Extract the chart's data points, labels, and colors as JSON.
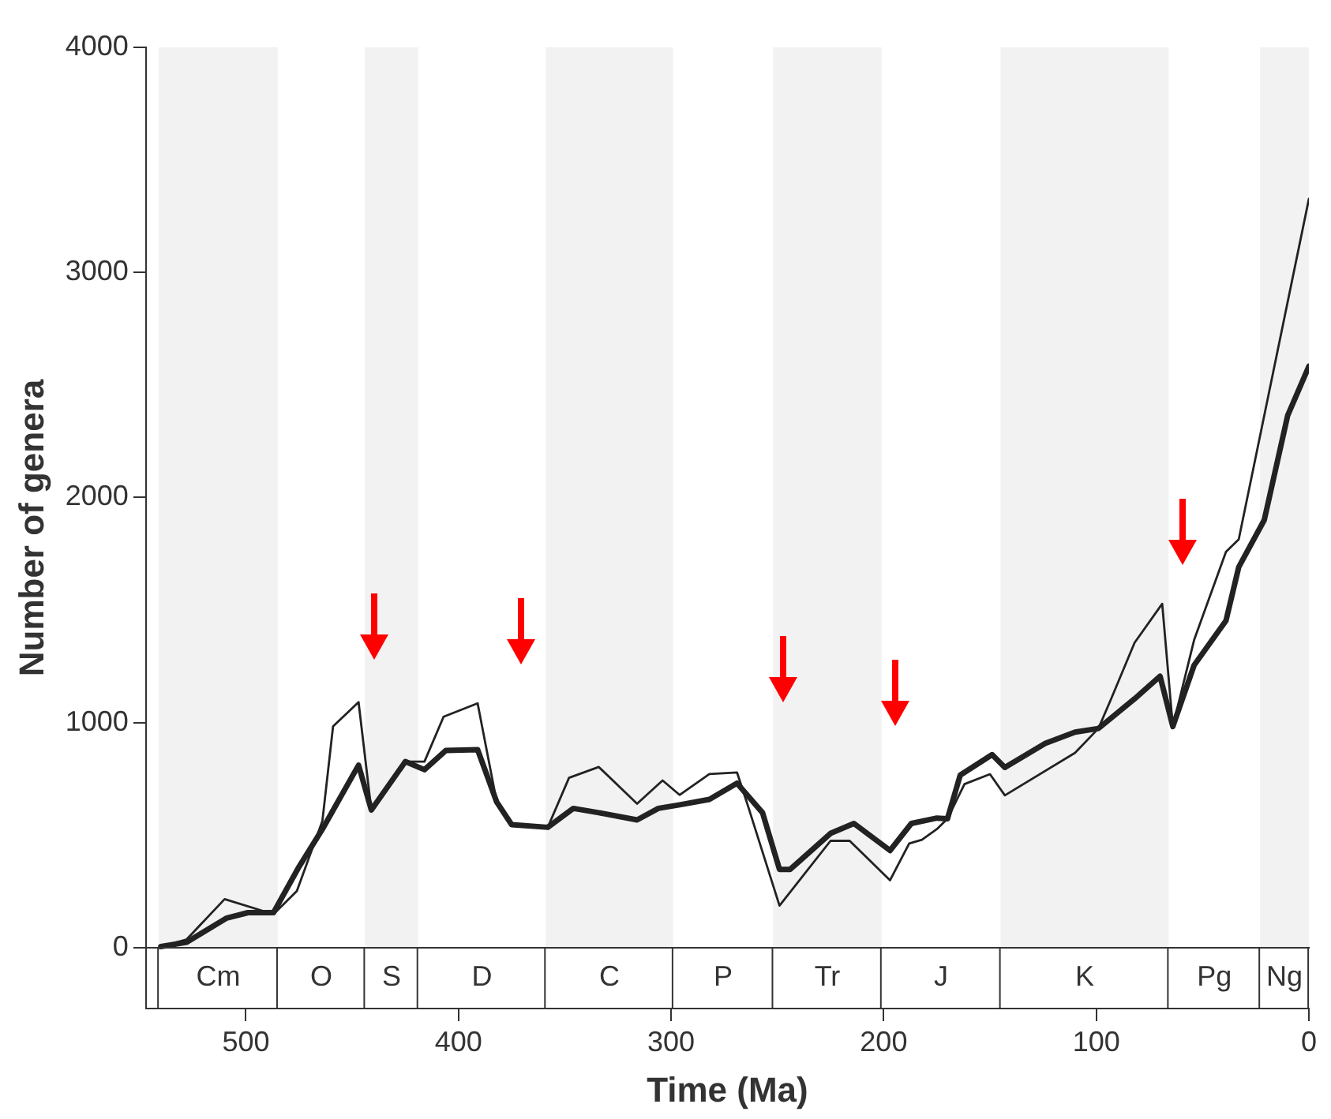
{
  "chart_data": {
    "type": "line",
    "xlabel": "Time (Ma)",
    "ylabel": "Number of genera",
    "xlim": [
      547,
      0
    ],
    "xticks": [
      500,
      400,
      300,
      200,
      100,
      0
    ],
    "ylim": [
      -270,
      4000
    ],
    "yticks": [
      0,
      1000,
      2000,
      3000,
      4000
    ],
    "marker": "none",
    "line_style": "solid",
    "bands": [
      {
        "axis": "x",
        "from": 541,
        "to": 485,
        "label": "Cm",
        "color": "#f2f2f2"
      },
      {
        "axis": "x",
        "from": 444,
        "to": 419,
        "label": "S",
        "color": "#f2f2f2"
      },
      {
        "axis": "x",
        "from": 359,
        "to": 299,
        "label": "C",
        "color": "#f2f2f2"
      },
      {
        "axis": "x",
        "from": 252,
        "to": 201,
        "label": "Tr",
        "color": "#f2f2f2"
      },
      {
        "axis": "x",
        "from": 145,
        "to": 66,
        "label": "K",
        "color": "#f2f2f2"
      },
      {
        "axis": "x",
        "from": 23,
        "to": 0,
        "label": "Ng",
        "color": "#f2f2f2"
      }
    ],
    "annotations": [
      "O",
      "D",
      "P",
      "J",
      "Pg"
    ],
    "series": [
      {
        "color": "#222222",
        "x": [
          540,
          528,
          509,
          499,
          487,
          475,
          464,
          447,
          441,
          425,
          416,
          406,
          391,
          382,
          375,
          358,
          346,
          334,
          316,
          306,
          296,
          282,
          269,
          257,
          249,
          244,
          225,
          214,
          197,
          187,
          175,
          170,
          164,
          149,
          143,
          124,
          110,
          99,
          82,
          70,
          64,
          54,
          39,
          33,
          21,
          10,
          0
        ],
        "values": [
          5,
          24,
          132,
          156,
          156,
          360,
          527,
          811,
          612,
          827,
          791,
          876,
          880,
          647,
          547,
          535,
          619,
          600,
          568,
          619,
          635,
          659,
          731,
          600,
          348,
          348,
          508,
          552,
          432,
          552,
          576,
          573,
          767,
          858,
          801,
          908,
          958,
          974,
          1106,
          1206,
          983,
          1255,
          1453,
          1691,
          1900,
          2364,
          2583
        ]
      },
      {
        "color": "#222222",
        "x": [
          540,
          528,
          510,
          487,
          476,
          464,
          459,
          447,
          441,
          425,
          416,
          407,
          391,
          382,
          375,
          358,
          348,
          334,
          316,
          304,
          296,
          282,
          269,
          264,
          249,
          225,
          216,
          197,
          188,
          182,
          175,
          170,
          162,
          150,
          143,
          110,
          99,
          93,
          82,
          69,
          64,
          54,
          39,
          33,
          0
        ],
        "values": [
          5,
          36,
          216,
          149,
          252,
          564,
          983,
          1091,
          612,
          827,
          827,
          1026,
          1086,
          647,
          547,
          535,
          755,
          803,
          640,
          743,
          679,
          772,
          779,
          635,
          187,
          475,
          475,
          300,
          463,
          480,
          527,
          573,
          727,
          771,
          677,
          866,
          974,
          1106,
          1355,
          1528,
          983,
          1367,
          1759,
          1814,
          3327
        ]
      }
    ]
  }
}
